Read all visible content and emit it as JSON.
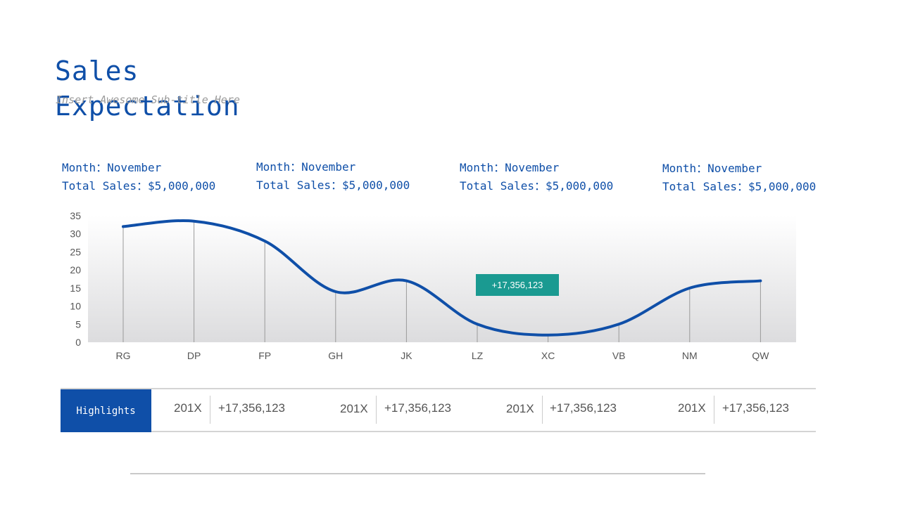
{
  "header": {
    "title": "Sales Expectation",
    "subtitle": "Insert Awesome Sub-title Here"
  },
  "info_blocks": [
    {
      "month": "Month：November",
      "sales": "Total Sales：$5,000,000"
    },
    {
      "month": "Month：November",
      "sales": "Total Sales：$5,000,000"
    },
    {
      "month": "Month：November",
      "sales": "Total Sales：$5,000,000"
    },
    {
      "month": "Month：November",
      "sales": "Total Sales：$5,000,000"
    }
  ],
  "callout": "+17,356,123",
  "colors": {
    "accent": "#0f4fa8",
    "callout": "#1a9a91",
    "line": "#0f4fa8"
  },
  "chart_data": {
    "type": "line",
    "categories": [
      "RG",
      "DP",
      "FP",
      "GH",
      "JK",
      "LZ",
      "XC",
      "VB",
      "NM",
      "QW"
    ],
    "series": [
      {
        "values": [
          32,
          33.5,
          28,
          14,
          17,
          5,
          2,
          5,
          15,
          17
        ]
      }
    ],
    "ylim": [
      0,
      35
    ],
    "yticks": [
      0,
      5,
      10,
      15,
      20,
      25,
      30,
      35
    ],
    "grid": false,
    "drop_lines": true
  },
  "highlights": {
    "label": "Highlights",
    "items": [
      {
        "year": "201X",
        "value": "+17,356,123"
      },
      {
        "year": "201X",
        "value": "+17,356,123"
      },
      {
        "year": "201X",
        "value": "+17,356,123"
      },
      {
        "year": "201X",
        "value": "+17,356,123"
      }
    ]
  }
}
